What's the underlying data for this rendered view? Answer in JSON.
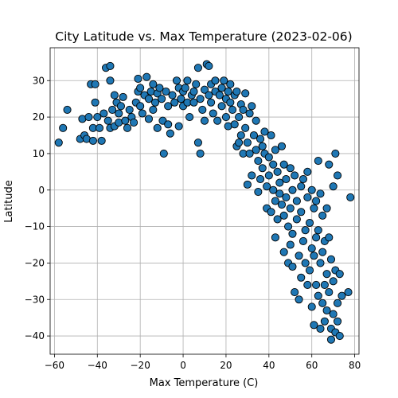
{
  "chart_data": {
    "type": "scatter",
    "title": "City Latitude vs. Max Temperature (2023-02-06)",
    "xlabel": "Max Temperature (C)",
    "ylabel": "Latitude",
    "xlim": [
      -62,
      82
    ],
    "ylim": [
      -45,
      39
    ],
    "xticks": [
      -60,
      -40,
      -20,
      0,
      20,
      40,
      60,
      80
    ],
    "yticks": [
      -40,
      -30,
      -20,
      -10,
      0,
      10,
      20,
      30
    ],
    "grid": true,
    "legend": "none",
    "marker_color": "#1f77b4",
    "edge_color": "#000000",
    "points": [
      [
        -58,
        13
      ],
      [
        -56,
        17
      ],
      [
        -54,
        22
      ],
      [
        -48,
        14
      ],
      [
        -47,
        19.5
      ],
      [
        -46,
        15
      ],
      [
        -45,
        14
      ],
      [
        -44,
        20
      ],
      [
        -43,
        29
      ],
      [
        -42,
        17
      ],
      [
        -42,
        13.5
      ],
      [
        -41,
        24
      ],
      [
        -41,
        29
      ],
      [
        -40,
        20
      ],
      [
        -39,
        17
      ],
      [
        -38,
        13.5
      ],
      [
        -37,
        21
      ],
      [
        -36,
        33.5
      ],
      [
        -35,
        19
      ],
      [
        -34,
        34
      ],
      [
        -34,
        30
      ],
      [
        -34,
        17
      ],
      [
        -33,
        22
      ],
      [
        -32,
        26
      ],
      [
        -32,
        17.5
      ],
      [
        -31,
        24
      ],
      [
        -30,
        21
      ],
      [
        -30,
        18.5
      ],
      [
        -29,
        23
      ],
      [
        -28,
        25.5
      ],
      [
        -27,
        19
      ],
      [
        -26,
        17
      ],
      [
        -25,
        22
      ],
      [
        -24,
        20
      ],
      [
        -23,
        18.5
      ],
      [
        -22,
        24
      ],
      [
        -21,
        27
      ],
      [
        -21,
        30.5
      ],
      [
        -20,
        28
      ],
      [
        -20,
        23
      ],
      [
        -19,
        21
      ],
      [
        -18,
        26
      ],
      [
        -17,
        31
      ],
      [
        -16,
        25
      ],
      [
        -16,
        19.5
      ],
      [
        -15,
        27
      ],
      [
        -14,
        29
      ],
      [
        -14,
        22
      ],
      [
        -13,
        24
      ],
      [
        -12,
        26.5
      ],
      [
        -12,
        17
      ],
      [
        -11,
        28
      ],
      [
        -10,
        25
      ],
      [
        -9.5,
        19
      ],
      [
        -9,
        10
      ],
      [
        -8,
        27
      ],
      [
        -7,
        23
      ],
      [
        -7,
        18
      ],
      [
        -6,
        15.5
      ],
      [
        -5,
        26
      ],
      [
        -4,
        24
      ],
      [
        -3,
        30
      ],
      [
        -2,
        28
      ],
      [
        -1,
        25
      ],
      [
        0,
        23
      ],
      [
        0,
        27
      ],
      [
        -2,
        17.5
      ],
      [
        1,
        28
      ],
      [
        2,
        24
      ],
      [
        2,
        30
      ],
      [
        3,
        20
      ],
      [
        4,
        26
      ],
      [
        5,
        24
      ],
      [
        5,
        27
      ],
      [
        6,
        29
      ],
      [
        7,
        33.5
      ],
      [
        7,
        13
      ],
      [
        8,
        25
      ],
      [
        8,
        10
      ],
      [
        9,
        22
      ],
      [
        10,
        27.5
      ],
      [
        10,
        19
      ],
      [
        11,
        34.5
      ],
      [
        12,
        34
      ],
      [
        12,
        26
      ],
      [
        13,
        29
      ],
      [
        13,
        24
      ],
      [
        14,
        21
      ],
      [
        15,
        27
      ],
      [
        15,
        30
      ],
      [
        16,
        19
      ],
      [
        17,
        26
      ],
      [
        18,
        23
      ],
      [
        18,
        28
      ],
      [
        19,
        30
      ],
      [
        20,
        25
      ],
      [
        20,
        20
      ],
      [
        21,
        27
      ],
      [
        21,
        17.5
      ],
      [
        22,
        24
      ],
      [
        22,
        29
      ],
      [
        23,
        22
      ],
      [
        24,
        26
      ],
      [
        24,
        18
      ],
      [
        25,
        27
      ],
      [
        25,
        12
      ],
      [
        26,
        13
      ],
      [
        26,
        20
      ],
      [
        27,
        15
      ],
      [
        27,
        23.5
      ],
      [
        28,
        22
      ],
      [
        28,
        10
      ],
      [
        29,
        26.5
      ],
      [
        29,
        17
      ],
      [
        30,
        13
      ],
      [
        30,
        1.5
      ],
      [
        31,
        21
      ],
      [
        31,
        10
      ],
      [
        32,
        23
      ],
      [
        32,
        4
      ],
      [
        33,
        15
      ],
      [
        34,
        11
      ],
      [
        34,
        19
      ],
      [
        35,
        8
      ],
      [
        35,
        -0.5
      ],
      [
        36,
        14
      ],
      [
        36,
        3
      ],
      [
        37,
        12
      ],
      [
        37,
        6
      ],
      [
        38,
        16
      ],
      [
        38,
        10
      ],
      [
        39,
        -5
      ],
      [
        39,
        1
      ],
      [
        40,
        9
      ],
      [
        40,
        4
      ],
      [
        41,
        15
      ],
      [
        41,
        -6
      ],
      [
        42,
        7
      ],
      [
        42,
        0
      ],
      [
        43,
        11
      ],
      [
        43,
        -3
      ],
      [
        43,
        -13
      ],
      [
        44,
        5
      ],
      [
        44,
        -8
      ],
      [
        45,
        2
      ],
      [
        45,
        -1
      ],
      [
        46,
        12
      ],
      [
        46,
        -4
      ],
      [
        47,
        7
      ],
      [
        47,
        -7
      ],
      [
        47,
        -17
      ],
      [
        48,
        3
      ],
      [
        48,
        -2
      ],
      [
        49,
        -10
      ],
      [
        49,
        -20
      ],
      [
        50,
        6
      ],
      [
        50,
        -5
      ],
      [
        50,
        -15
      ],
      [
        51,
        0
      ],
      [
        51,
        -12
      ],
      [
        51,
        -21
      ],
      [
        52,
        4
      ],
      [
        52,
        -28
      ],
      [
        53,
        -3
      ],
      [
        53,
        -8
      ],
      [
        54,
        -18
      ],
      [
        54,
        -30
      ],
      [
        55,
        1
      ],
      [
        55,
        -6
      ],
      [
        55,
        -24
      ],
      [
        56,
        3
      ],
      [
        56,
        -14
      ],
      [
        57,
        -11
      ],
      [
        57,
        -20
      ],
      [
        58,
        5
      ],
      [
        58,
        -2
      ],
      [
        58,
        -26
      ],
      [
        59,
        -9
      ],
      [
        59,
        -22
      ],
      [
        60,
        0
      ],
      [
        60,
        -16
      ],
      [
        60,
        -32
      ],
      [
        61,
        -5
      ],
      [
        61,
        -18
      ],
      [
        61,
        -37
      ],
      [
        62,
        -3
      ],
      [
        62,
        -13
      ],
      [
        62,
        -26
      ],
      [
        63,
        8
      ],
      [
        63,
        -11
      ],
      [
        63,
        -29
      ],
      [
        64,
        -1
      ],
      [
        64,
        -20
      ],
      [
        64,
        -38
      ],
      [
        65,
        -7
      ],
      [
        65,
        -17
      ],
      [
        65,
        -31
      ],
      [
        66,
        -14
      ],
      [
        66,
        -26
      ],
      [
        66,
        -36
      ],
      [
        67,
        -5
      ],
      [
        67,
        -23
      ],
      [
        67,
        -33
      ],
      [
        68,
        7
      ],
      [
        68,
        -13
      ],
      [
        68,
        -28
      ],
      [
        69,
        -19
      ],
      [
        69,
        -38
      ],
      [
        69,
        -41
      ],
      [
        70,
        1
      ],
      [
        70,
        -25
      ],
      [
        70,
        -34
      ],
      [
        71,
        10
      ],
      [
        71,
        -22
      ],
      [
        71,
        -39
      ],
      [
        72,
        4
      ],
      [
        72,
        -31
      ],
      [
        72,
        -36
      ],
      [
        73,
        -23
      ],
      [
        73,
        -40
      ],
      [
        74,
        -29
      ],
      [
        77,
        -28
      ],
      [
        78,
        -2
      ]
    ]
  }
}
